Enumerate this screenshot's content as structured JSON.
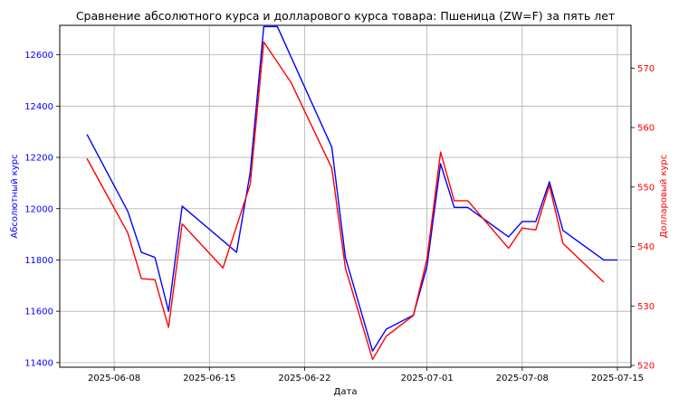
{
  "chart_data": {
    "type": "line",
    "title": "Сравнение абсолютного курса и долларового курса товара: Пшеница (ZW=F) за пять лет",
    "xlabel": "Дата",
    "ylabel_left": "Абсолютный курс",
    "ylabel_right": "Долларовый курс",
    "x_ticks": [
      "2025-06-08",
      "2025-06-15",
      "2025-06-22",
      "2025-07-01",
      "2025-07-08",
      "2025-07-15"
    ],
    "y_left_ticks": [
      11400,
      11600,
      11800,
      12000,
      12200,
      12400,
      12600
    ],
    "y_right_ticks": [
      520,
      530,
      540,
      550,
      560,
      570
    ],
    "xlim": [
      "2025-06-04",
      "2025-07-16"
    ],
    "ylim_left": [
      11382,
      12715
    ],
    "ylim_right": [
      519.7,
      577.2
    ],
    "grid": true,
    "colors": {
      "left": "#0000ff",
      "right": "#ff0000"
    },
    "series": [
      {
        "axis": "left",
        "x": [
          "2025-06-06",
          "2025-06-09",
          "2025-06-10",
          "2025-06-11",
          "2025-06-12",
          "2025-06-13",
          "2025-06-17",
          "2025-06-18",
          "2025-06-19",
          "2025-06-20",
          "2025-06-24",
          "2025-06-25",
          "2025-06-27",
          "2025-06-28",
          "2025-06-30",
          "2025-07-01",
          "2025-07-02",
          "2025-07-03",
          "2025-07-04",
          "2025-07-07",
          "2025-07-08",
          "2025-07-09",
          "2025-07-10",
          "2025-07-11",
          "2025-07-14",
          "2025-07-15"
        ],
        "values": [
          12290,
          11990,
          11830,
          11810,
          11600,
          12010,
          11830,
          12140,
          12710,
          12710,
          12240,
          11810,
          11445,
          11530,
          11585,
          11775,
          12175,
          12005,
          12005,
          11890,
          11950,
          11950,
          12105,
          11915,
          11800,
          11800
        ]
      },
      {
        "axis": "right",
        "x": [
          "2025-06-06",
          "2025-06-09",
          "2025-06-10",
          "2025-06-11",
          "2025-06-12",
          "2025-06-13",
          "2025-06-16",
          "2025-06-18",
          "2025-06-19",
          "2025-06-21",
          "2025-06-24",
          "2025-06-25",
          "2025-06-27",
          "2025-06-28",
          "2025-06-30",
          "2025-07-01",
          "2025-07-02",
          "2025-07-03",
          "2025-07-04",
          "2025-07-07",
          "2025-07-08",
          "2025-07-09",
          "2025-07-10",
          "2025-07-11",
          "2025-07-14"
        ],
        "values": [
          554.8,
          542.3,
          534.6,
          534.4,
          526.4,
          543.8,
          536.4,
          550.4,
          574.4,
          567.6,
          553.2,
          536.4,
          521.0,
          524.9,
          528.4,
          537.9,
          555.9,
          547.7,
          547.7,
          539.7,
          543.1,
          542.8,
          550.3,
          540.5,
          534.0
        ]
      }
    ]
  }
}
